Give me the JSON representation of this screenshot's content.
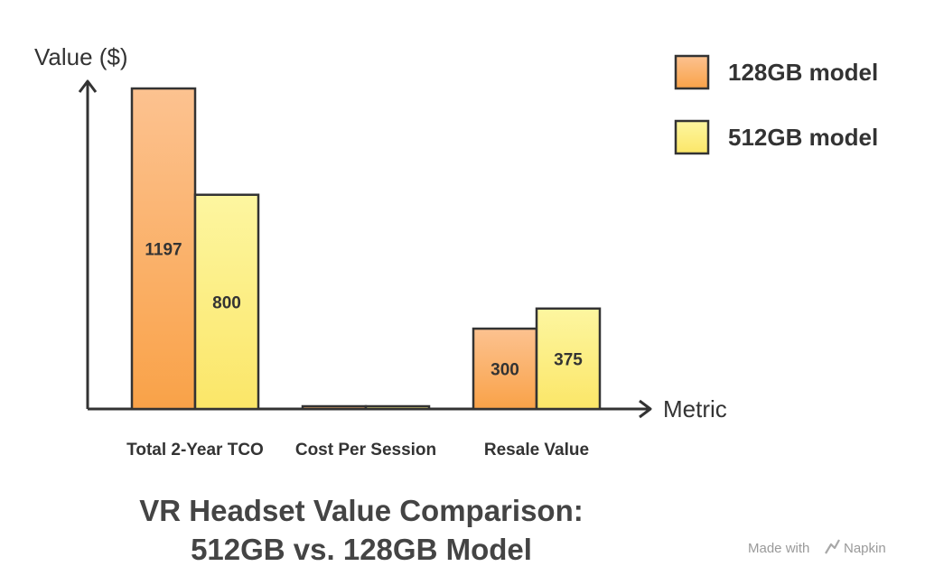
{
  "chart_data": {
    "type": "bar",
    "title_lines": [
      "VR Headset Value Comparison:",
      "512GB vs. 128GB Model"
    ],
    "xlabel": "Metric",
    "ylabel": "Value ($)",
    "categories": [
      "Total 2-Year TCO",
      "Cost Per Session",
      "Resale Value"
    ],
    "series": [
      {
        "name": "128GB model",
        "values": [
          1197,
          4,
          300
        ],
        "labels": [
          "1197",
          "",
          "300"
        ],
        "color_top": "#fcc290",
        "color_bottom": "#f9a248"
      },
      {
        "name": "512GB model",
        "values": [
          800,
          3,
          375
        ],
        "labels": [
          "800",
          "",
          "375"
        ],
        "color_top": "#fdf6a0",
        "color_bottom": "#fbe668"
      }
    ],
    "ylim": [
      0,
      1197
    ],
    "legend_position": "top-right",
    "grid": false
  },
  "credit": {
    "made_with": "Made with",
    "brand": "Napkin"
  }
}
